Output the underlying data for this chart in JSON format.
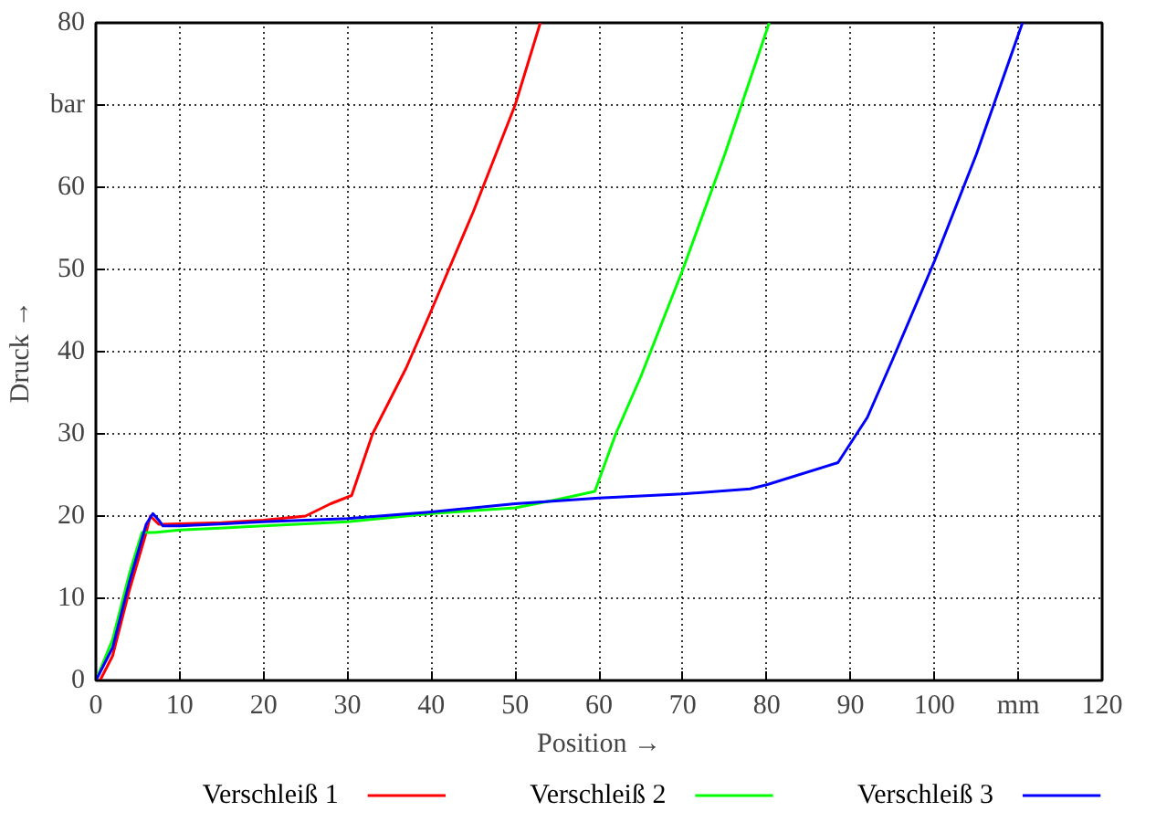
{
  "chart_data": {
    "type": "line",
    "xlabel": "Position →",
    "ylabel": "Druck →",
    "xlim": [
      0,
      120
    ],
    "ylim": [
      0,
      80
    ],
    "xticks": [
      0,
      10,
      20,
      30,
      40,
      50,
      60,
      70,
      80,
      90,
      100,
      {
        "value": 110,
        "label": "mm"
      },
      120
    ],
    "yticks": [
      0,
      10,
      20,
      30,
      40,
      50,
      60,
      {
        "value": 70,
        "label": "bar"
      },
      80
    ],
    "grid": true,
    "legend": "bottom",
    "line_style": "solid",
    "series": [
      {
        "name": "Verschleiß  1",
        "color": "#ff0000",
        "x": [
          0.5,
          2,
          4,
          6,
          6.5,
          7.5,
          8,
          15,
          20,
          25,
          28,
          30.5,
          33,
          37,
          40,
          45,
          50,
          53
        ],
        "values": [
          0,
          3,
          11,
          18,
          20,
          19,
          19,
          19.2,
          19.5,
          20,
          21.5,
          22.5,
          30,
          38,
          45,
          57,
          70,
          80
        ]
      },
      {
        "name": "Verschleiß  2",
        "color": "#00ff00",
        "x": [
          0,
          2,
          4,
          5.5,
          7,
          10,
          20,
          30,
          40,
          50,
          55,
          59.5,
          62,
          65,
          70,
          75,
          80.3
        ],
        "values": [
          0,
          5,
          13,
          18,
          18,
          18.3,
          18.8,
          19.3,
          20.3,
          21,
          22,
          23,
          30,
          37,
          50,
          64,
          80
        ]
      },
      {
        "name": "Verschleiß  3",
        "color": "#0000ff",
        "x": [
          0,
          2,
          4,
          6,
          6.8,
          7.5,
          8,
          10,
          20,
          30,
          40,
          50,
          60,
          70,
          78,
          80,
          88.5,
          92,
          95,
          100,
          105,
          110.5
        ],
        "values": [
          0,
          4,
          12,
          19,
          20.3,
          19.5,
          18.8,
          18.8,
          19.3,
          19.7,
          20.5,
          21.5,
          22.2,
          22.7,
          23.3,
          23.8,
          26.5,
          32,
          39,
          51,
          64,
          80
        ]
      }
    ]
  }
}
